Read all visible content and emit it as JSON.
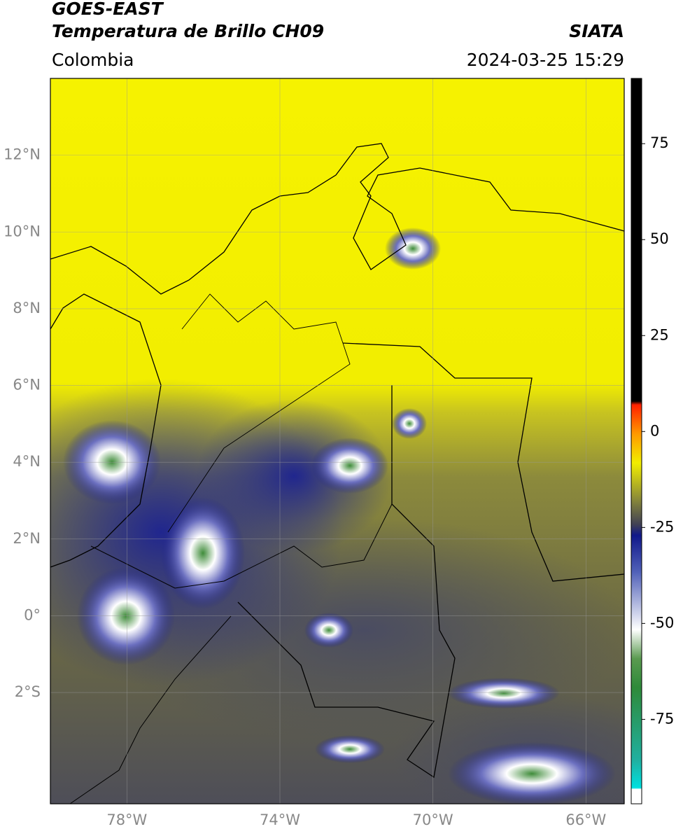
{
  "header": {
    "title": "GOES-EAST",
    "subtitle": "Temperatura de Brillo CH09",
    "source": "SIATA",
    "region": "Colombia",
    "datetime": "2024-03-25 15:29"
  },
  "map": {
    "lonlim": [
      -80,
      -65
    ],
    "latlim": [
      -4.9,
      14
    ],
    "lonticks": [
      {
        "value": -78,
        "label": "78°W"
      },
      {
        "value": -74,
        "label": "74°W"
      },
      {
        "value": -70,
        "label": "70°W"
      },
      {
        "value": -66,
        "label": "66°W"
      }
    ],
    "latticks": [
      {
        "value": 12,
        "label": "12°N"
      },
      {
        "value": 10,
        "label": "10°N"
      },
      {
        "value": 8,
        "label": "8°N"
      },
      {
        "value": 6,
        "label": "6°N"
      },
      {
        "value": 4,
        "label": "4°N"
      },
      {
        "value": 2,
        "label": "2°N"
      },
      {
        "value": 0,
        "label": "0°"
      },
      {
        "value": -2,
        "label": "2°S"
      }
    ]
  },
  "colorbar": {
    "lim": [
      -97,
      92
    ],
    "ticks": [
      75,
      50,
      25,
      0,
      -25,
      -50,
      -75
    ]
  }
}
